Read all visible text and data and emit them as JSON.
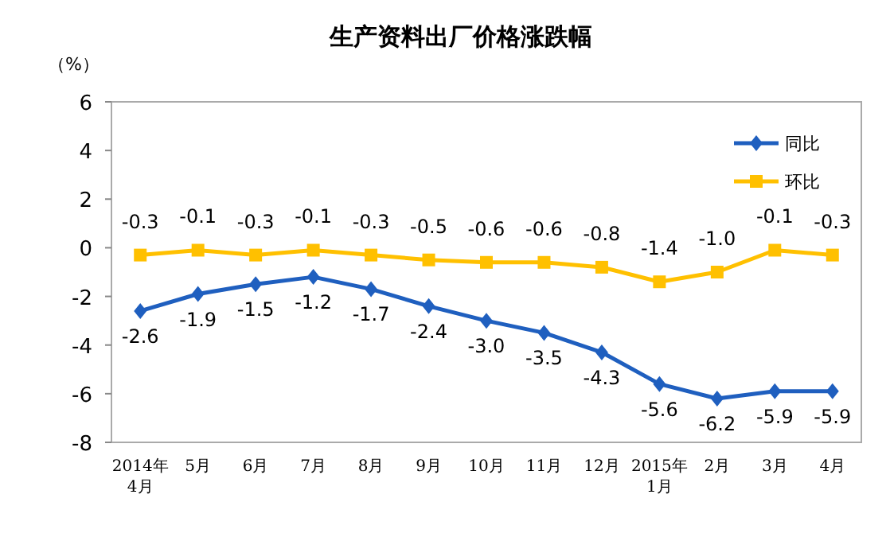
{
  "chart_data": {
    "type": "line",
    "title": "生产资料出厂价格涨跌幅",
    "ylabel": "（%）",
    "categories": [
      "2014年\n4月",
      "5月",
      "6月",
      "7月",
      "8月",
      "9月",
      "10月",
      "11月",
      "12月",
      "2015年\n1月",
      "2月",
      "3月",
      "4月"
    ],
    "series": [
      {
        "name": "同比",
        "color": "#1f5fbf",
        "marker": "diamond",
        "values": [
          -2.6,
          -1.9,
          -1.5,
          -1.2,
          -1.7,
          -2.4,
          -3.0,
          -3.5,
          -4.3,
          -5.6,
          -6.2,
          -5.9,
          -5.9
        ],
        "value_labels": [
          "-2.6",
          "-1.9",
          "-1.5",
          "-1.2",
          "-1.7",
          "-2.4",
          "-3.0",
          "-3.5",
          "-4.3",
          "-5.6",
          "-6.2",
          "-5.9",
          "-5.9"
        ]
      },
      {
        "name": "环比",
        "color": "#ffc000",
        "marker": "square",
        "values": [
          -0.3,
          -0.1,
          -0.3,
          -0.1,
          -0.3,
          -0.5,
          -0.6,
          -0.6,
          -0.8,
          -1.4,
          -1.0,
          -0.1,
          -0.3
        ],
        "value_labels": [
          "-0.3",
          "-0.1",
          "-0.3",
          "-0.1",
          "-0.3",
          "-0.5",
          "-0.6",
          "-0.6",
          "-0.8",
          "-1.4",
          "-1.0",
          "-0.1",
          "-0.3"
        ]
      }
    ],
    "ylim": [
      -8,
      6
    ],
    "yticks": [
      -8,
      -6,
      -4,
      -2,
      0,
      2,
      4,
      6
    ],
    "legend": "top right",
    "line_style": "solid"
  }
}
